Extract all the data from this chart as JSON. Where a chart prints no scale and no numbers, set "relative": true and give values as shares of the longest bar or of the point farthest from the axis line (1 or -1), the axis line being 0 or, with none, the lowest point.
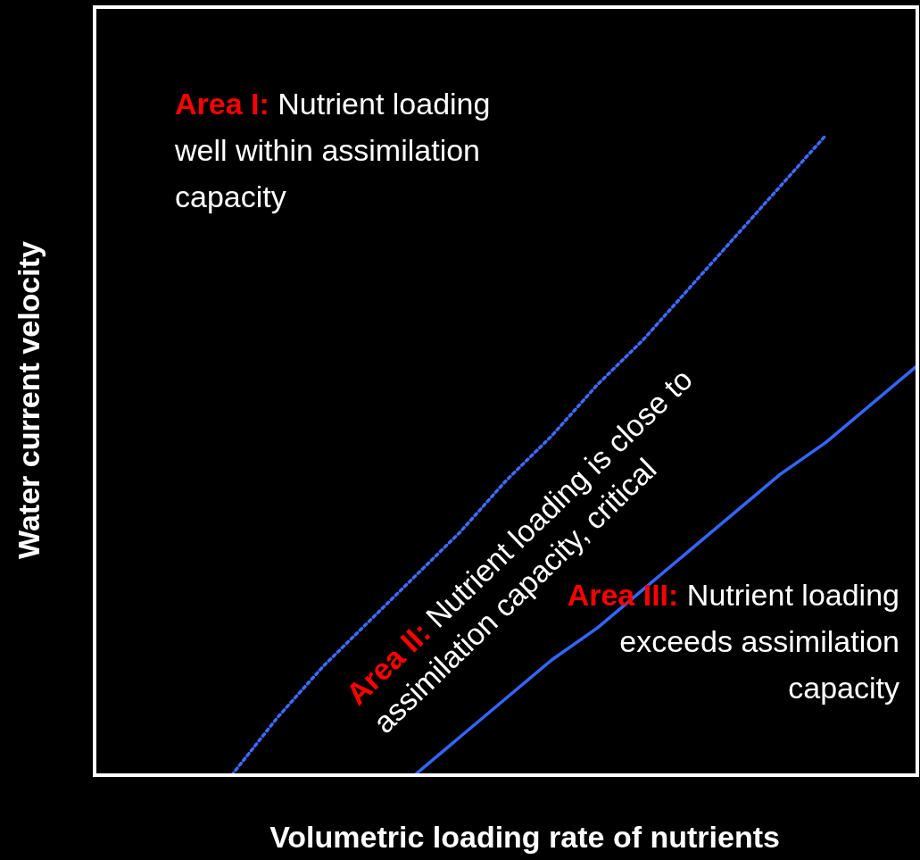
{
  "chart_data": {
    "type": "line",
    "relative": true,
    "xlabel": "Volumetric loading rate of nutrients",
    "ylabel": "Water current velocity",
    "categories": [
      null,
      null,
      null,
      null,
      null,
      null,
      null,
      null,
      null,
      null,
      null,
      null,
      null,
      null,
      null,
      null,
      null,
      null,
      null
    ],
    "series": [
      {
        "color": "#3f6bff",
        "line_style": "dotted",
        "values": [
          null,
          null,
          null,
          0,
          0.09,
          0.17,
          0.24,
          0.31,
          0.38,
          0.46,
          0.53,
          0.61,
          0.68,
          0.76,
          0.84,
          0.92,
          1,
          null,
          null
        ]
      },
      {
        "color": "#3366ff",
        "line_style": "solid",
        "values": [
          null,
          null,
          null,
          null,
          null,
          null,
          null,
          0,
          0.06,
          0.12,
          0.18,
          0.23,
          0.29,
          0.35,
          0.41,
          0.47,
          0.52,
          0.58,
          0.64
        ]
      }
    ],
    "marker": "none",
    "annotations": [
      "Area I: Nutrient loading well within assimilation capacity",
      "Area II: Nutrient loading is close to assimilation capacity, critical",
      "Area III: Nutrient loading exceeds assimilation capacity"
    ]
  }
}
